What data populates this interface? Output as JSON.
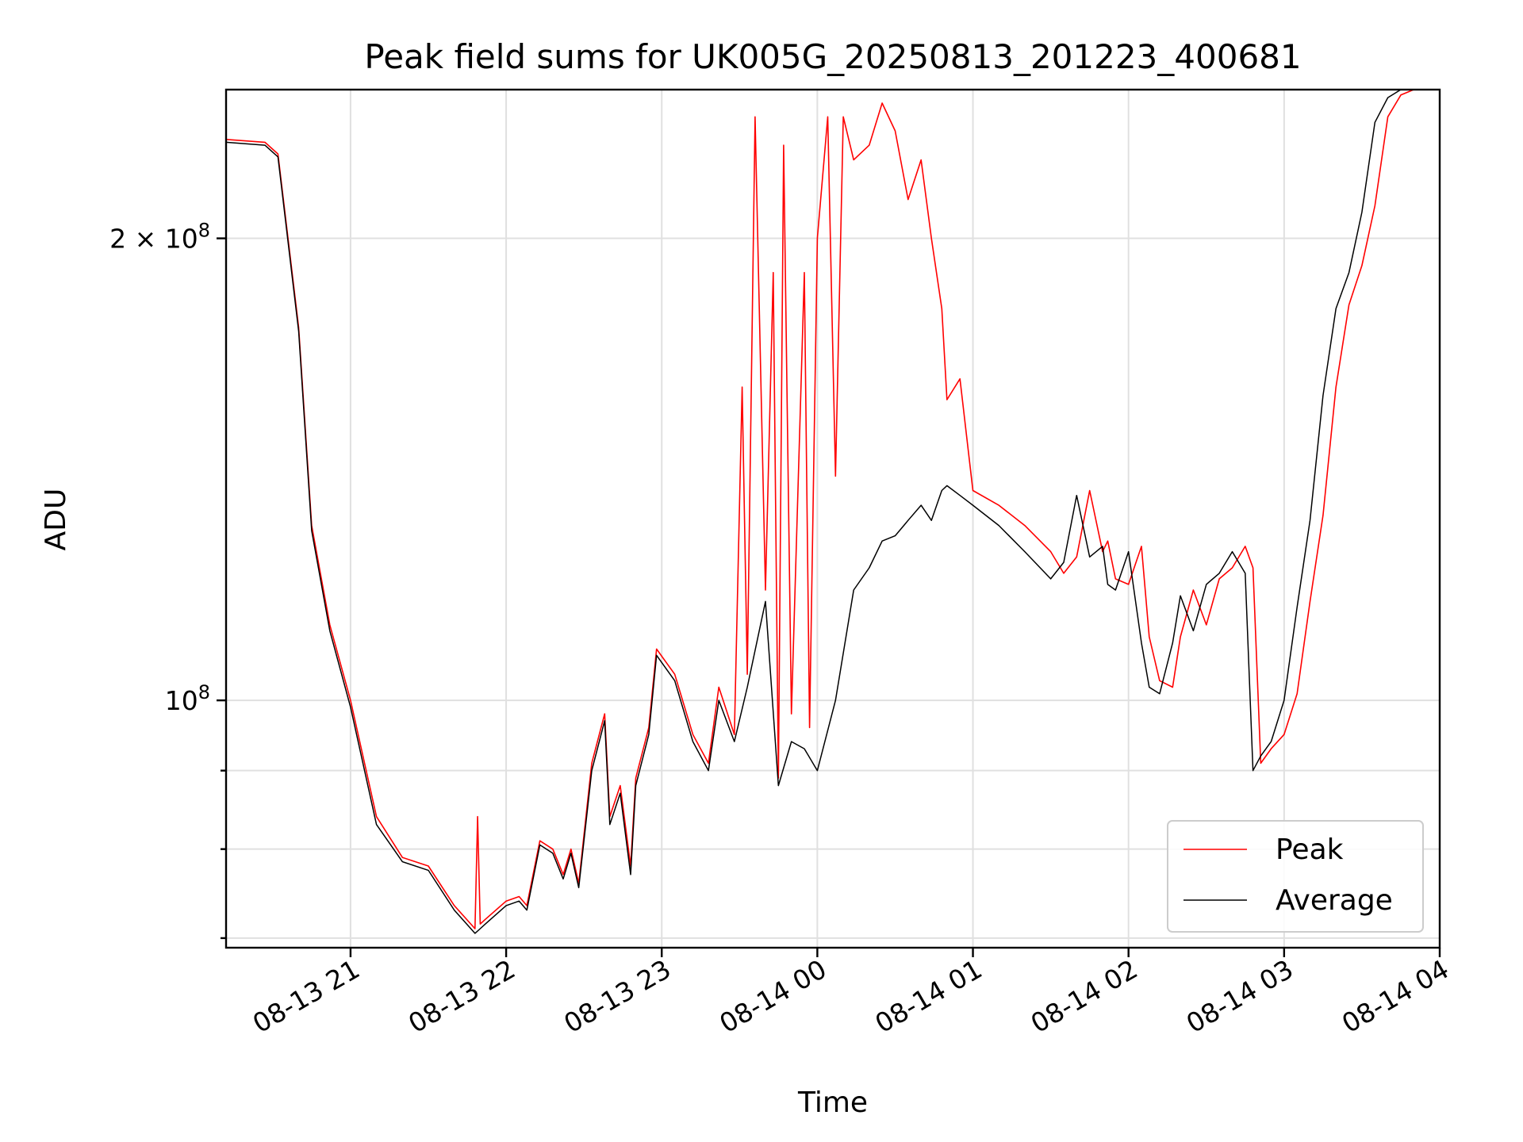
{
  "chart_data": {
    "type": "line",
    "title": "Peak field sums for UK005G_20250813_201223_400681",
    "xlabel": "Time",
    "ylabel": "ADU",
    "x_ticks": [
      "08-13 21",
      "08-13 22",
      "08-13 23",
      "08-14 00",
      "08-14 01",
      "08-14 02",
      "08-14 03",
      "08-14 04"
    ],
    "y_scale": "log",
    "y_ticks": [
      {
        "value": 100000000,
        "mantissa": "",
        "exp": "8"
      },
      {
        "value": 200000000,
        "mantissa": "2 × ",
        "exp": "8"
      }
    ],
    "y_minor_ticks": [
      70000000,
      80000000,
      90000000
    ],
    "xlim": [
      "2025-08-13 20:12",
      "2025-08-14 04:00"
    ],
    "ylim": [
      69000000,
      250000000
    ],
    "grid": true,
    "legend_position": "lower-right",
    "series": [
      {
        "name": "Peak",
        "color": "#ff0000",
        "x": [
          "2025-08-13 20:12",
          "2025-08-13 20:27",
          "2025-08-13 20:32",
          "2025-08-13 20:40",
          "2025-08-13 20:45",
          "2025-08-13 20:52",
          "2025-08-13 21:00",
          "2025-08-13 21:10",
          "2025-08-13 21:20",
          "2025-08-13 21:30",
          "2025-08-13 21:40",
          "2025-08-13 21:48",
          "2025-08-13 21:49",
          "2025-08-13 21:50",
          "2025-08-13 21:52",
          "2025-08-13 22:00",
          "2025-08-13 22:05",
          "2025-08-13 22:08",
          "2025-08-13 22:13",
          "2025-08-13 22:18",
          "2025-08-13 22:22",
          "2025-08-13 22:25",
          "2025-08-13 22:28",
          "2025-08-13 22:33",
          "2025-08-13 22:38",
          "2025-08-13 22:40",
          "2025-08-13 22:44",
          "2025-08-13 22:48",
          "2025-08-13 22:50",
          "2025-08-13 22:55",
          "2025-08-13 22:58",
          "2025-08-13 23:05",
          "2025-08-13 23:12",
          "2025-08-13 23:18",
          "2025-08-13 23:22",
          "2025-08-13 23:28",
          "2025-08-13 23:31",
          "2025-08-13 23:33",
          "2025-08-13 23:36",
          "2025-08-13 23:40",
          "2025-08-13 23:43",
          "2025-08-13 23:45",
          "2025-08-13 23:47",
          "2025-08-13 23:50",
          "2025-08-13 23:55",
          "2025-08-13 23:57",
          "2025-08-14 00:00",
          "2025-08-14 00:04",
          "2025-08-14 00:07",
          "2025-08-14 00:10",
          "2025-08-14 00:14",
          "2025-08-14 00:20",
          "2025-08-14 00:25",
          "2025-08-14 00:30",
          "2025-08-14 00:35",
          "2025-08-14 00:40",
          "2025-08-14 00:44",
          "2025-08-14 00:48",
          "2025-08-14 00:50",
          "2025-08-14 00:55",
          "2025-08-14 01:00",
          "2025-08-14 01:10",
          "2025-08-14 01:20",
          "2025-08-14 01:30",
          "2025-08-14 01:35",
          "2025-08-14 01:40",
          "2025-08-14 01:45",
          "2025-08-14 01:50",
          "2025-08-14 01:52",
          "2025-08-14 01:55",
          "2025-08-14 02:00",
          "2025-08-14 02:05",
          "2025-08-14 02:08",
          "2025-08-14 02:12",
          "2025-08-14 02:17",
          "2025-08-14 02:20",
          "2025-08-14 02:25",
          "2025-08-14 02:30",
          "2025-08-14 02:35",
          "2025-08-14 02:40",
          "2025-08-14 02:45",
          "2025-08-14 02:48",
          "2025-08-14 02:51",
          "2025-08-14 02:55",
          "2025-08-14 03:00",
          "2025-08-14 03:05",
          "2025-08-14 03:10",
          "2025-08-14 03:15",
          "2025-08-14 03:20",
          "2025-08-14 03:25",
          "2025-08-14 03:30",
          "2025-08-14 03:35",
          "2025-08-14 03:40",
          "2025-08-14 03:45",
          "2025-08-14 03:50",
          "2025-08-14 03:54",
          "2025-08-14 03:58"
        ],
        "values": [
          232000000,
          231000000,
          227000000,
          175000000,
          130000000,
          112000000,
          100000000,
          84000000,
          79000000,
          78000000,
          73500000,
          71000000,
          84000000,
          71500000,
          72000000,
          74000000,
          74500000,
          73500000,
          81000000,
          80000000,
          77000000,
          80000000,
          76000000,
          91000000,
          98000000,
          84000000,
          88000000,
          78000000,
          89000000,
          96000000,
          108000000,
          104000000,
          95000000,
          91000000,
          102000000,
          95000000,
          160000000,
          104000000,
          240000000,
          118000000,
          190000000,
          89000000,
          230000000,
          98000000,
          190000000,
          96000000,
          200000000,
          240000000,
          140000000,
          240000000,
          225000000,
          230000000,
          245000000,
          235000000,
          212000000,
          225000000,
          200000000,
          180000000,
          157000000,
          162000000,
          137000000,
          134000000,
          130000000,
          125000000,
          121000000,
          124000000,
          137000000,
          125000000,
          127000000,
          120000000,
          119000000,
          126000000,
          110000000,
          103000000,
          102000000,
          110000000,
          118000000,
          112000000,
          120000000,
          122000000,
          126000000,
          122000000,
          91000000,
          93000000,
          95000000,
          101000000,
          116000000,
          132000000,
          160000000,
          181000000,
          192000000,
          210000000,
          240000000,
          248000000,
          250000000,
          250000000,
          250000000
        ]
      },
      {
        "name": "Average",
        "color": "#000000",
        "x": [
          "2025-08-13 20:12",
          "2025-08-13 20:27",
          "2025-08-13 20:32",
          "2025-08-13 20:40",
          "2025-08-13 20:45",
          "2025-08-13 20:52",
          "2025-08-13 21:00",
          "2025-08-13 21:10",
          "2025-08-13 21:20",
          "2025-08-13 21:30",
          "2025-08-13 21:40",
          "2025-08-13 21:48",
          "2025-08-13 21:50",
          "2025-08-13 21:52",
          "2025-08-13 22:00",
          "2025-08-13 22:05",
          "2025-08-13 22:08",
          "2025-08-13 22:13",
          "2025-08-13 22:18",
          "2025-08-13 22:22",
          "2025-08-13 22:25",
          "2025-08-13 22:28",
          "2025-08-13 22:33",
          "2025-08-13 22:38",
          "2025-08-13 22:40",
          "2025-08-13 22:44",
          "2025-08-13 22:48",
          "2025-08-13 22:50",
          "2025-08-13 22:55",
          "2025-08-13 22:58",
          "2025-08-13 23:05",
          "2025-08-13 23:12",
          "2025-08-13 23:18",
          "2025-08-13 23:22",
          "2025-08-13 23:28",
          "2025-08-13 23:33",
          "2025-08-13 23:40",
          "2025-08-13 23:45",
          "2025-08-13 23:50",
          "2025-08-13 23:55",
          "2025-08-14 00:00",
          "2025-08-14 00:07",
          "2025-08-14 00:14",
          "2025-08-14 00:20",
          "2025-08-14 00:25",
          "2025-08-14 00:30",
          "2025-08-14 00:35",
          "2025-08-14 00:40",
          "2025-08-14 00:44",
          "2025-08-14 00:48",
          "2025-08-14 00:50",
          "2025-08-14 00:55",
          "2025-08-14 01:00",
          "2025-08-14 01:10",
          "2025-08-14 01:20",
          "2025-08-14 01:30",
          "2025-08-14 01:35",
          "2025-08-14 01:40",
          "2025-08-14 01:45",
          "2025-08-14 01:50",
          "2025-08-14 01:52",
          "2025-08-14 01:55",
          "2025-08-14 02:00",
          "2025-08-14 02:05",
          "2025-08-14 02:08",
          "2025-08-14 02:12",
          "2025-08-14 02:17",
          "2025-08-14 02:20",
          "2025-08-14 02:25",
          "2025-08-14 02:30",
          "2025-08-14 02:35",
          "2025-08-14 02:40",
          "2025-08-14 02:45",
          "2025-08-14 02:48",
          "2025-08-14 02:51",
          "2025-08-14 02:55",
          "2025-08-14 03:00",
          "2025-08-14 03:05",
          "2025-08-14 03:10",
          "2025-08-14 03:15",
          "2025-08-14 03:20",
          "2025-08-14 03:25",
          "2025-08-14 03:30",
          "2025-08-14 03:35",
          "2025-08-14 03:40",
          "2025-08-14 03:45",
          "2025-08-14 03:50",
          "2025-08-14 03:54",
          "2025-08-14 03:58"
        ],
        "values": [
          231000000,
          230000000,
          226000000,
          174000000,
          129000000,
          111000000,
          99000000,
          83000000,
          78500000,
          77500000,
          73000000,
          70500000,
          71000000,
          71500000,
          73500000,
          74000000,
          73000000,
          80500000,
          79500000,
          76500000,
          79500000,
          75500000,
          90000000,
          97000000,
          83000000,
          87000000,
          77000000,
          88000000,
          95000000,
          107000000,
          103000000,
          94000000,
          90000000,
          100000000,
          94000000,
          102000000,
          116000000,
          88000000,
          94000000,
          93000000,
          90000000,
          100000000,
          118000000,
          122000000,
          127000000,
          128000000,
          131000000,
          134000000,
          131000000,
          137000000,
          138000000,
          136000000,
          134000000,
          130000000,
          125000000,
          120000000,
          123000000,
          136000000,
          124000000,
          126000000,
          119000000,
          118000000,
          125000000,
          109000000,
          102000000,
          101000000,
          109000000,
          117000000,
          111000000,
          119000000,
          121000000,
          125000000,
          121000000,
          90000000,
          92000000,
          94000000,
          100000000,
          115000000,
          131000000,
          158000000,
          180000000,
          190000000,
          208000000,
          238000000,
          247000000,
          250000000,
          250000000,
          250000000,
          250000000
        ]
      }
    ]
  }
}
